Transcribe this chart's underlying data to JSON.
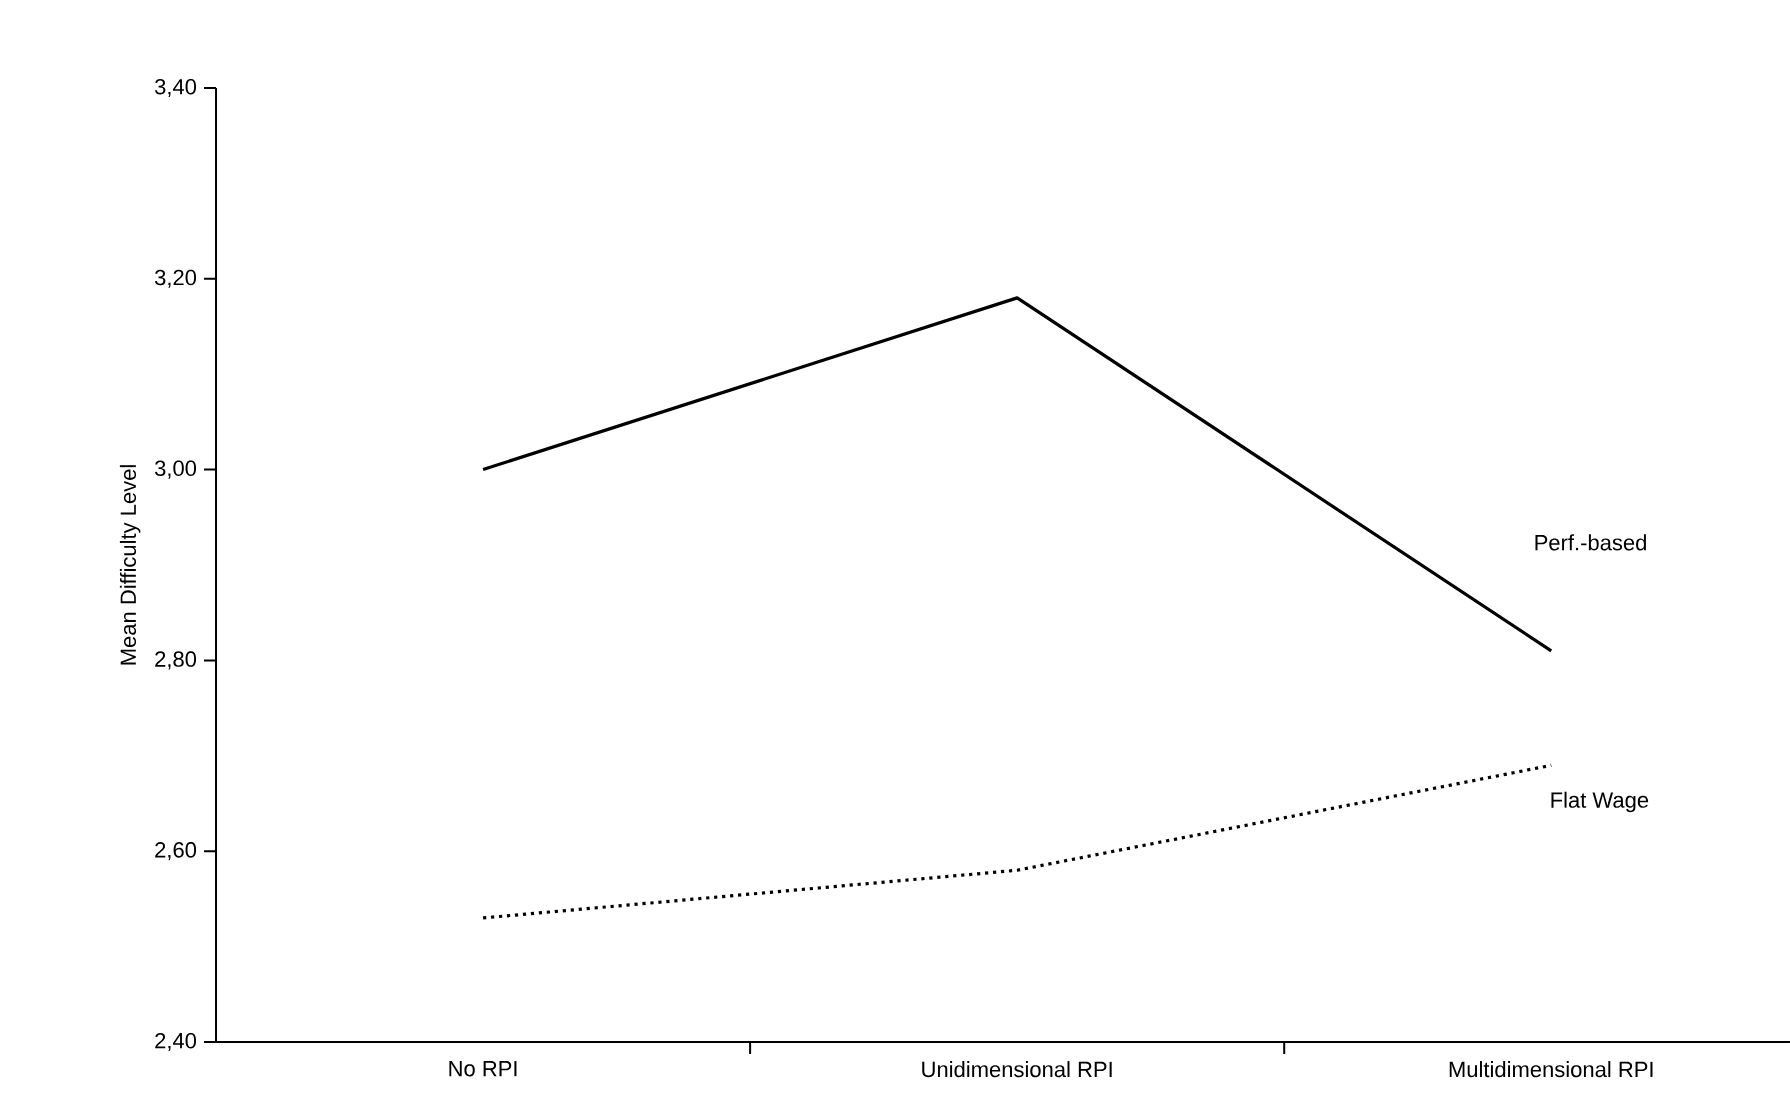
{
  "chart_data": {
    "type": "line",
    "ylabel": "Mean Difficulty Level",
    "categories": [
      "No RPI",
      "Unidimensional RPI",
      "Multidimensional RPI"
    ],
    "series": [
      {
        "name": "Perf.-based",
        "color": "#000000",
        "line_style": "solid",
        "values": [
          3.0,
          3.18,
          2.81
        ]
      },
      {
        "name": "Flat Wage",
        "color": "#000000",
        "line_style": "dotted",
        "values": [
          2.53,
          2.58,
          2.69
        ]
      }
    ],
    "ylim": [
      2.4,
      3.4
    ],
    "yticks": [
      {
        "value": 2.4,
        "label": "2,40"
      },
      {
        "value": 2.6,
        "label": "2,60"
      },
      {
        "value": 2.8,
        "label": "2,80"
      },
      {
        "value": 3.0,
        "label": "3,00"
      },
      {
        "value": 3.2,
        "label": "3,20"
      },
      {
        "value": 3.4,
        "label": "3,40"
      }
    ],
    "grid": false,
    "marker": "none"
  }
}
